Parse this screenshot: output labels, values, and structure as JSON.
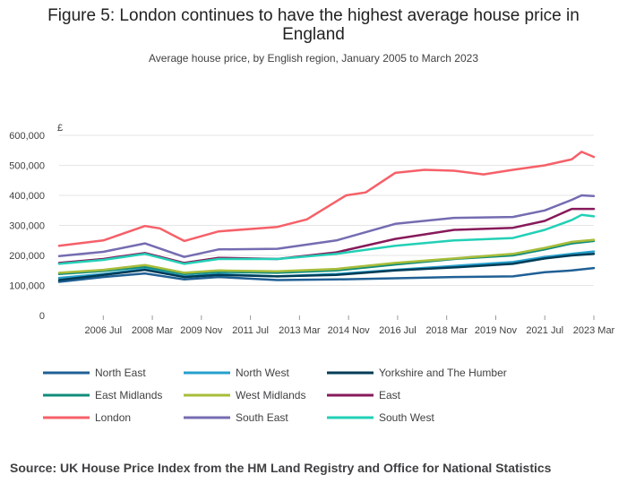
{
  "chart_data": {
    "type": "line",
    "title": "Figure 5: London continues to have the highest average house price in England",
    "subtitle": "Average house price, by English region, January 2005 to March 2023",
    "y_unit_label": "£",
    "xlim": [
      "2005-01",
      "2023-03"
    ],
    "ylim": [
      0,
      600000
    ],
    "y_ticks": [
      0,
      100000,
      200000,
      300000,
      400000,
      500000,
      600000
    ],
    "y_tick_labels": [
      "0",
      "100,000",
      "200,000",
      "300,000",
      "400,000",
      "500,000",
      "600,000"
    ],
    "x_ticks": [
      "2006-07",
      "2008-03",
      "2009-11",
      "2011-07",
      "2013-03",
      "2014-11",
      "2016-07",
      "2018-03",
      "2019-11",
      "2021-07",
      "2023-03"
    ],
    "x_tick_labels": [
      "2006 Jul",
      "2008 Mar",
      "2009 Nov",
      "2011 Jul",
      "2013 Mar",
      "2014 Nov",
      "2016 Jul",
      "2018 Mar",
      "2019 Nov",
      "2021 Jul",
      "2023 Mar"
    ],
    "grid": true,
    "legend_position": "bottom",
    "source": "Source: UK House Price Index from the HM Land Registry and Office for National Statistics",
    "series": [
      {
        "name": "North East",
        "color": "#206095",
        "points": [
          [
            "2005-01",
            112000
          ],
          [
            "2006-07",
            128000
          ],
          [
            "2007-12",
            140000
          ],
          [
            "2009-04",
            120000
          ],
          [
            "2010-06",
            128000
          ],
          [
            "2012-06",
            118000
          ],
          [
            "2014-06",
            120000
          ],
          [
            "2016-06",
            124000
          ],
          [
            "2018-06",
            128000
          ],
          [
            "2020-06",
            130000
          ],
          [
            "2021-07",
            144000
          ],
          [
            "2022-06",
            150000
          ],
          [
            "2023-03",
            158000
          ]
        ]
      },
      {
        "name": "North West",
        "color": "#27a0cc",
        "points": [
          [
            "2005-01",
            125000
          ],
          [
            "2006-07",
            138000
          ],
          [
            "2007-12",
            155000
          ],
          [
            "2009-04",
            130000
          ],
          [
            "2010-06",
            138000
          ],
          [
            "2012-06",
            130000
          ],
          [
            "2014-06",
            138000
          ],
          [
            "2016-06",
            152000
          ],
          [
            "2018-06",
            165000
          ],
          [
            "2020-06",
            178000
          ],
          [
            "2021-07",
            195000
          ],
          [
            "2022-06",
            205000
          ],
          [
            "2023-03",
            213000
          ]
        ]
      },
      {
        "name": "Yorkshire and The Humber",
        "color": "#003c57",
        "points": [
          [
            "2005-01",
            118000
          ],
          [
            "2006-07",
            135000
          ],
          [
            "2007-12",
            152000
          ],
          [
            "2009-04",
            128000
          ],
          [
            "2010-06",
            135000
          ],
          [
            "2012-06",
            130000
          ],
          [
            "2014-06",
            135000
          ],
          [
            "2016-06",
            150000
          ],
          [
            "2018-06",
            160000
          ],
          [
            "2020-06",
            172000
          ],
          [
            "2021-07",
            190000
          ],
          [
            "2022-06",
            200000
          ],
          [
            "2023-03",
            205000
          ]
        ]
      },
      {
        "name": "East Midlands",
        "color": "#118c7b",
        "points": [
          [
            "2005-01",
            138000
          ],
          [
            "2006-07",
            148000
          ],
          [
            "2007-12",
            162000
          ],
          [
            "2009-04",
            138000
          ],
          [
            "2010-06",
            145000
          ],
          [
            "2012-06",
            142000
          ],
          [
            "2014-06",
            150000
          ],
          [
            "2016-06",
            170000
          ],
          [
            "2018-06",
            188000
          ],
          [
            "2020-06",
            200000
          ],
          [
            "2021-07",
            220000
          ],
          [
            "2022-06",
            240000
          ],
          [
            "2023-03",
            248000
          ]
        ]
      },
      {
        "name": "West Midlands",
        "color": "#a8bd3a",
        "points": [
          [
            "2005-01",
            142000
          ],
          [
            "2006-07",
            152000
          ],
          [
            "2007-12",
            168000
          ],
          [
            "2009-04",
            142000
          ],
          [
            "2010-06",
            150000
          ],
          [
            "2012-06",
            147000
          ],
          [
            "2014-06",
            155000
          ],
          [
            "2016-06",
            175000
          ],
          [
            "2018-06",
            190000
          ],
          [
            "2020-06",
            205000
          ],
          [
            "2021-07",
            225000
          ],
          [
            "2022-06",
            245000
          ],
          [
            "2023-03",
            252000
          ]
        ]
      },
      {
        "name": "East",
        "color": "#871a5b",
        "points": [
          [
            "2005-01",
            175000
          ],
          [
            "2006-07",
            188000
          ],
          [
            "2007-12",
            208000
          ],
          [
            "2009-04",
            175000
          ],
          [
            "2010-06",
            192000
          ],
          [
            "2012-06",
            188000
          ],
          [
            "2014-06",
            210000
          ],
          [
            "2016-06",
            255000
          ],
          [
            "2018-06",
            285000
          ],
          [
            "2020-06",
            292000
          ],
          [
            "2021-07",
            315000
          ],
          [
            "2022-06",
            355000
          ],
          [
            "2023-03",
            355000
          ]
        ]
      },
      {
        "name": "London",
        "color": "#f66068",
        "points": [
          [
            "2005-01",
            232000
          ],
          [
            "2006-07",
            250000
          ],
          [
            "2007-12",
            298000
          ],
          [
            "2008-06",
            290000
          ],
          [
            "2009-04",
            248000
          ],
          [
            "2010-06",
            280000
          ],
          [
            "2012-06",
            295000
          ],
          [
            "2013-06",
            320000
          ],
          [
            "2014-10",
            400000
          ],
          [
            "2015-06",
            410000
          ],
          [
            "2016-06",
            475000
          ],
          [
            "2017-06",
            485000
          ],
          [
            "2018-06",
            482000
          ],
          [
            "2019-06",
            470000
          ],
          [
            "2020-06",
            485000
          ],
          [
            "2021-07",
            500000
          ],
          [
            "2022-06",
            520000
          ],
          [
            "2022-10",
            545000
          ],
          [
            "2023-03",
            528000
          ]
        ]
      },
      {
        "name": "South East",
        "color": "#746cb1",
        "points": [
          [
            "2005-01",
            198000
          ],
          [
            "2006-07",
            212000
          ],
          [
            "2007-12",
            240000
          ],
          [
            "2009-04",
            195000
          ],
          [
            "2010-06",
            220000
          ],
          [
            "2012-06",
            222000
          ],
          [
            "2014-06",
            250000
          ],
          [
            "2016-06",
            305000
          ],
          [
            "2018-06",
            325000
          ],
          [
            "2020-06",
            328000
          ],
          [
            "2021-07",
            350000
          ],
          [
            "2022-06",
            385000
          ],
          [
            "2022-10",
            400000
          ],
          [
            "2023-03",
            398000
          ]
        ]
      },
      {
        "name": "South West",
        "color": "#22d0b6",
        "points": [
          [
            "2005-01",
            172000
          ],
          [
            "2006-07",
            185000
          ],
          [
            "2007-12",
            205000
          ],
          [
            "2009-04",
            172000
          ],
          [
            "2010-06",
            188000
          ],
          [
            "2012-06",
            188000
          ],
          [
            "2014-06",
            205000
          ],
          [
            "2016-06",
            232000
          ],
          [
            "2018-06",
            250000
          ],
          [
            "2020-06",
            258000
          ],
          [
            "2021-07",
            285000
          ],
          [
            "2022-06",
            318000
          ],
          [
            "2022-10",
            335000
          ],
          [
            "2023-03",
            330000
          ]
        ]
      }
    ]
  }
}
